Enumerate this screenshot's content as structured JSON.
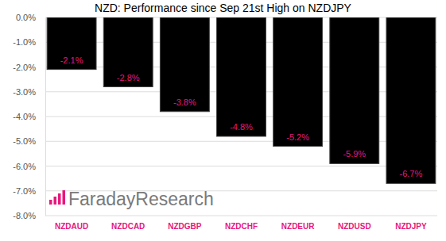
{
  "chart_data": {
    "type": "bar",
    "title": "NZD: Performance since Sep 21st High on NZDJPY",
    "categories": [
      "NZDAUD",
      "NZDCAD",
      "NZDGBP",
      "NZDCHF",
      "NZDEUR",
      "NZDUSD",
      "NZDJPY"
    ],
    "values": [
      -2.1,
      -2.8,
      -3.8,
      -4.8,
      -5.2,
      -5.9,
      -6.7
    ],
    "value_labels": [
      "-2.1%",
      "-2.8%",
      "-3.8%",
      "-4.8%",
      "-5.2%",
      "-5.9%",
      "-6.7%"
    ],
    "color": "#000000",
    "ylim": [
      -8,
      0
    ],
    "yticks": [
      {
        "value": 0,
        "label": "0.0%"
      },
      {
        "value": -1,
        "label": "-1.0%"
      },
      {
        "value": -2,
        "label": "-2.0%"
      },
      {
        "value": -3,
        "label": "-3.0%"
      },
      {
        "value": -4,
        "label": "-4.0%"
      },
      {
        "value": -5,
        "label": "-5.0%"
      },
      {
        "value": -6,
        "label": "-6.0%"
      },
      {
        "value": -7,
        "label": "-7.0%"
      },
      {
        "value": -8,
        "label": "-8.0%"
      }
    ],
    "grid": true,
    "data_labels": true,
    "annotations": [
      "FaradayResearch"
    ]
  }
}
